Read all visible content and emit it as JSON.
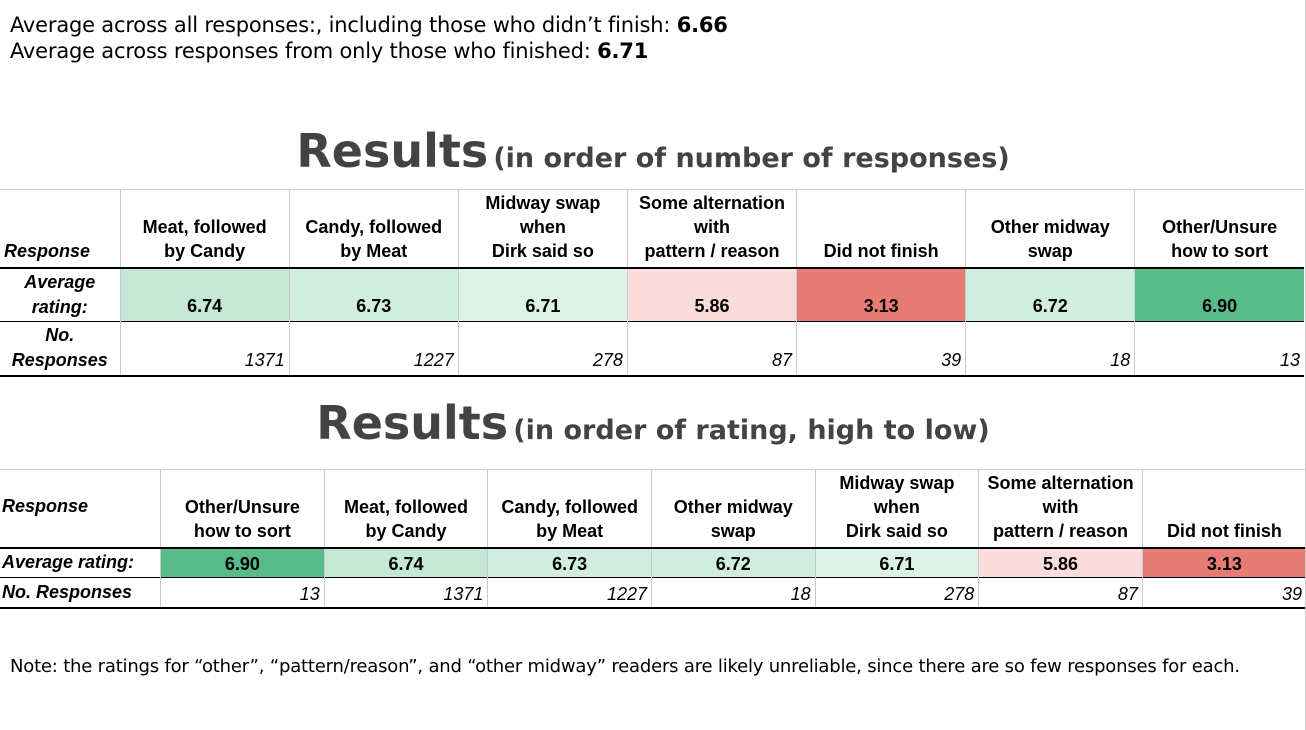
{
  "summary": {
    "line1_text": "Average across all responses:, including those who didn’t finish: ",
    "line1_value": "6.66",
    "line2_text": "Average across responses from only those who finished: ",
    "line2_value": "6.71"
  },
  "table1": {
    "heading_main": "Results",
    "heading_sub": "(in order of number of responses)",
    "row_labels": {
      "header": "Response",
      "rating": "Average rating:",
      "count": "No. Responses"
    },
    "columns": [
      {
        "label_lines": [
          "Meat, followed",
          "by Candy"
        ],
        "rating": "6.74",
        "count": "1371",
        "color": "#c4e8d5"
      },
      {
        "label_lines": [
          "Candy, followed",
          "by Meat"
        ],
        "rating": "6.73",
        "count": "1227",
        "color": "#d0ede0"
      },
      {
        "label_lines": [
          "Midway swap",
          "when",
          "Dirk said so"
        ],
        "rating": "6.71",
        "count": "278",
        "color": "#ddf2e7"
      },
      {
        "label_lines": [
          "Some alternation",
          "with",
          "pattern / reason"
        ],
        "rating": "5.86",
        "count": "87",
        "color": "#f9dcdb"
      },
      {
        "label_lines": [
          "Did not finish"
        ],
        "rating": "3.13",
        "count": "39",
        "color": "#e67c73"
      },
      {
        "label_lines": [
          "Other midway",
          "swap"
        ],
        "rating": "6.72",
        "count": "18",
        "color": "#d0ede0"
      },
      {
        "label_lines": [
          "Other/Unsure",
          "how to sort"
        ],
        "rating": "6.90",
        "count": "13",
        "color": "#57bb8a"
      }
    ]
  },
  "table2": {
    "heading_main": "Results",
    "heading_sub": "(in order of rating, high to low)",
    "row_labels": {
      "header": "Response",
      "rating": "Average rating:",
      "count": "No. Responses"
    },
    "columns": [
      {
        "label_lines": [
          "Other/Unsure",
          "how to sort"
        ],
        "rating": "6.90",
        "count": "13",
        "color": "#57bb8a"
      },
      {
        "label_lines": [
          "Meat, followed",
          "by Candy"
        ],
        "rating": "6.74",
        "count": "1371",
        "color": "#c4e8d5"
      },
      {
        "label_lines": [
          "Candy, followed",
          "by Meat"
        ],
        "rating": "6.73",
        "count": "1227",
        "color": "#d0ede0"
      },
      {
        "label_lines": [
          "Other midway",
          "swap"
        ],
        "rating": "6.72",
        "count": "18",
        "color": "#d0ede0"
      },
      {
        "label_lines": [
          "Midway swap",
          "when",
          "Dirk said so"
        ],
        "rating": "6.71",
        "count": "278",
        "color": "#ddf2e7"
      },
      {
        "label_lines": [
          "Some alternation",
          "with",
          "pattern / reason"
        ],
        "rating": "5.86",
        "count": "87",
        "color": "#f9dcdb"
      },
      {
        "label_lines": [
          "Did not finish"
        ],
        "rating": "3.13",
        "count": "39",
        "color": "#e67c73"
      }
    ]
  },
  "note": "Note: the ratings for “other”, “pattern/reason”, and “other midway” readers are likely unreliable, since there are so few responses for each."
}
